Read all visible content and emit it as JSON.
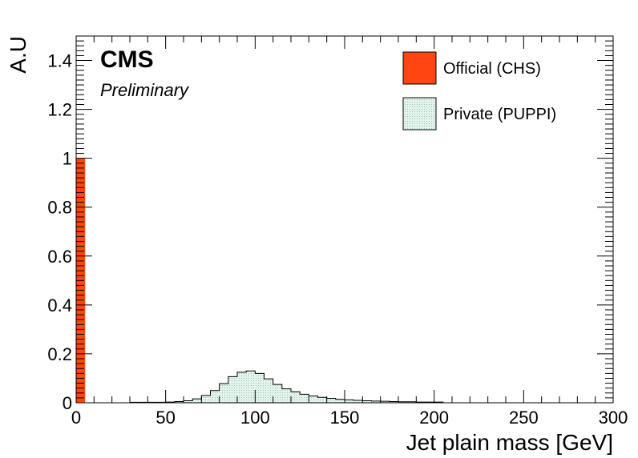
{
  "chart_data": {
    "type": "bar",
    "xlabel": "Jet plain mass [GeV]",
    "ylabel": "A.U",
    "xlim": [
      0,
      300
    ],
    "ylim": [
      0,
      1.5
    ],
    "x_ticks": [
      "0",
      "50",
      "100",
      "150",
      "200",
      "250",
      "300"
    ],
    "y_ticks": [
      "0",
      "0.2",
      "0.4",
      "0.6",
      "0.8",
      "1",
      "1.2",
      "1.4"
    ],
    "bin_width": 5,
    "grid": false,
    "legend_position": "top-right",
    "annotations": {
      "experiment": "CMS",
      "status": "Preliminary"
    },
    "series": [
      {
        "name": "Official (CHS)",
        "color": "#ff4512",
        "bins": [
          {
            "x": 0,
            "value": 1.0
          }
        ]
      },
      {
        "name": "Private (PUPPI)",
        "color": "#d8eee4",
        "bins": [
          {
            "x": 30,
            "value": 0.002
          },
          {
            "x": 35,
            "value": 0.002
          },
          {
            "x": 40,
            "value": 0.002
          },
          {
            "x": 45,
            "value": 0.002
          },
          {
            "x": 50,
            "value": 0.003
          },
          {
            "x": 55,
            "value": 0.005
          },
          {
            "x": 60,
            "value": 0.008
          },
          {
            "x": 65,
            "value": 0.016
          },
          {
            "x": 70,
            "value": 0.03
          },
          {
            "x": 75,
            "value": 0.05
          },
          {
            "x": 80,
            "value": 0.078
          },
          {
            "x": 85,
            "value": 0.107
          },
          {
            "x": 90,
            "value": 0.125
          },
          {
            "x": 95,
            "value": 0.13
          },
          {
            "x": 100,
            "value": 0.12
          },
          {
            "x": 105,
            "value": 0.098
          },
          {
            "x": 110,
            "value": 0.075
          },
          {
            "x": 115,
            "value": 0.057
          },
          {
            "x": 120,
            "value": 0.045
          },
          {
            "x": 125,
            "value": 0.035
          },
          {
            "x": 130,
            "value": 0.028
          },
          {
            "x": 135,
            "value": 0.022
          },
          {
            "x": 140,
            "value": 0.018
          },
          {
            "x": 145,
            "value": 0.014
          },
          {
            "x": 150,
            "value": 0.012
          },
          {
            "x": 155,
            "value": 0.01
          },
          {
            "x": 160,
            "value": 0.008
          },
          {
            "x": 165,
            "value": 0.007
          },
          {
            "x": 170,
            "value": 0.006
          },
          {
            "x": 175,
            "value": 0.005
          },
          {
            "x": 180,
            "value": 0.004
          },
          {
            "x": 185,
            "value": 0.004
          },
          {
            "x": 190,
            "value": 0.003
          },
          {
            "x": 195,
            "value": 0.003
          },
          {
            "x": 200,
            "value": 0.003
          }
        ]
      }
    ]
  }
}
